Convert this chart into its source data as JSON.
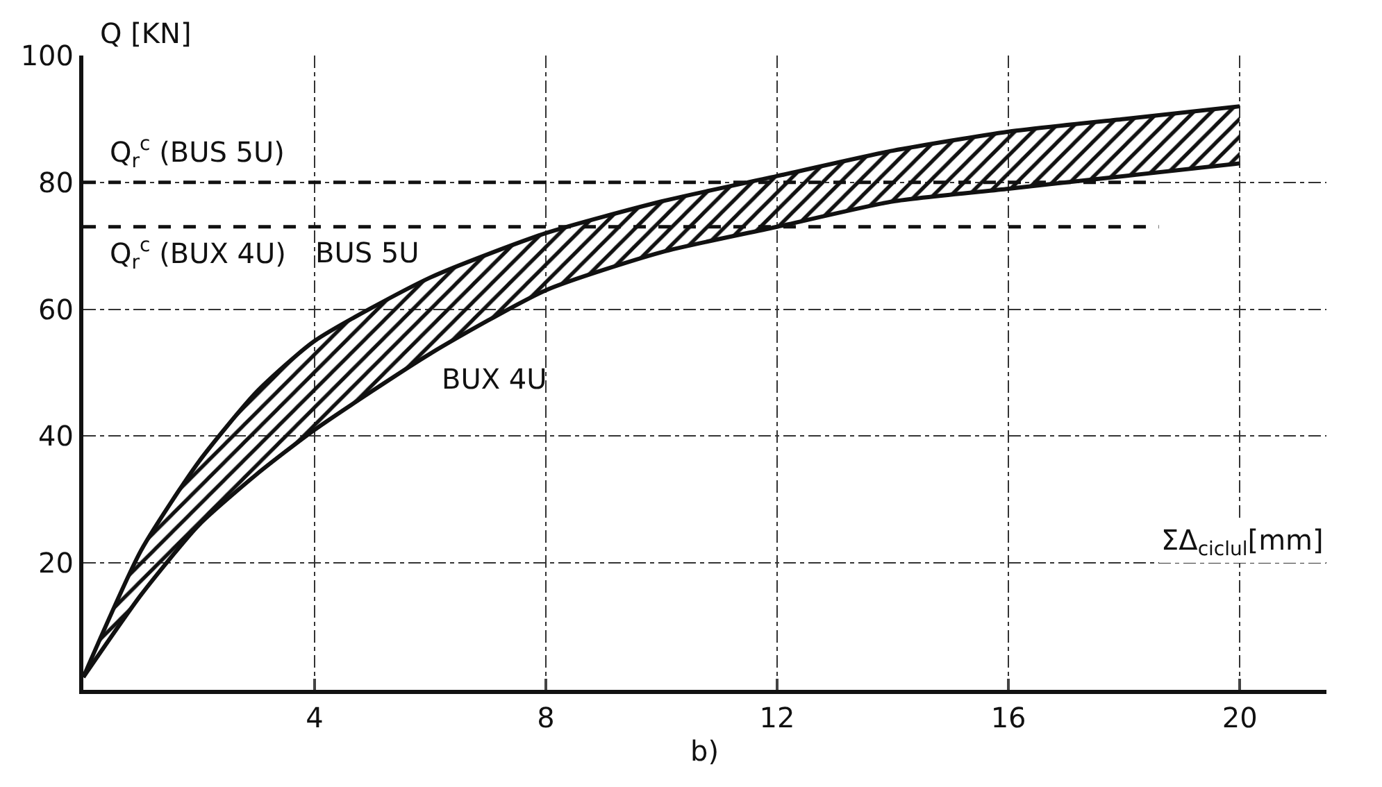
{
  "chart_data": {
    "type": "line",
    "xlabel": "ΣΔ$_{ciclul}$[mm]",
    "ylabel": "Q [KN]",
    "x": [
      0,
      1,
      2,
      3,
      4,
      6,
      8,
      10,
      12,
      14,
      16,
      18,
      20
    ],
    "series": [
      {
        "name": "BUX 4U",
        "color": "#111111",
        "values": [
          2,
          15,
          26,
          34,
          41,
          53,
          63,
          69,
          73,
          77,
          79,
          81,
          83
        ]
      },
      {
        "name": "BUS 5U",
        "color": "#111111",
        "values": [
          2,
          22,
          36,
          47,
          55,
          65,
          72,
          77,
          81,
          85,
          88,
          90,
          92
        ],
        "lower": [
          2,
          15,
          26,
          34,
          41,
          53,
          63,
          69,
          73,
          77,
          79,
          81,
          83
        ],
        "upper": [
          2,
          22,
          36,
          47,
          55,
          65,
          72,
          77,
          81,
          85,
          88,
          90,
          92
        ]
      }
    ],
    "xlim": [
      0,
      21.5
    ],
    "xticks": [
      4,
      8,
      12,
      16,
      20
    ],
    "ylim": [
      0,
      100
    ],
    "yticks": [
      20,
      40,
      60,
      80,
      100
    ],
    "grid": true,
    "legend": false,
    "marker": "none",
    "line_style": "solid",
    "ref_lines": [
      {
        "axis": "y",
        "value": 80,
        "label": "Q$_{r}$$^{c}$ (BUS 5U)",
        "line_style": "dashed"
      },
      {
        "axis": "y",
        "value": 73,
        "label": "Q$_{r}$$^{c}$ (BUX 4U)",
        "line_style": "dashed"
      }
    ],
    "annotations": [
      "b)"
    ]
  }
}
